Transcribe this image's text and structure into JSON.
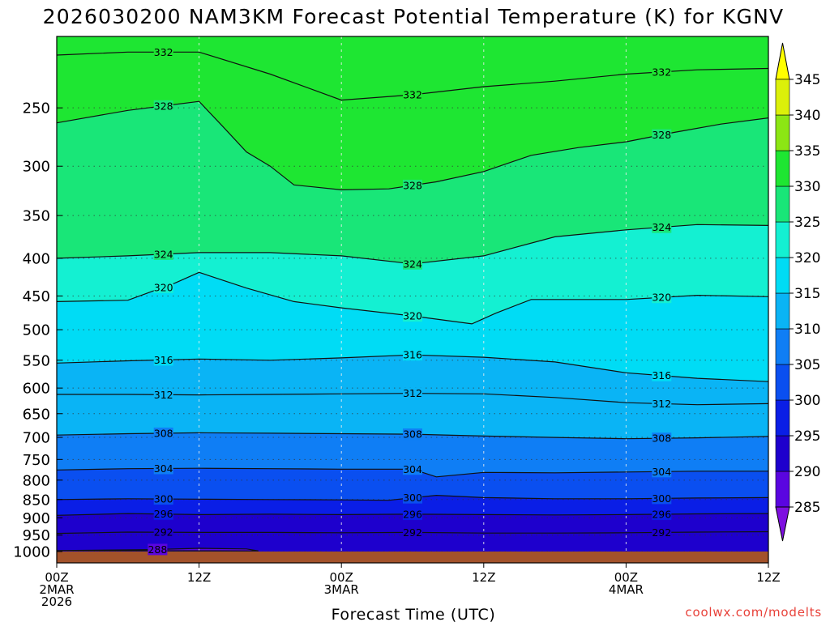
{
  "chart_data": {
    "type": "heatmap",
    "title": "2026030200 NAM3KM Forecast Potential Temperature (K) for KGNV",
    "xlabel": "Forecast Time (UTC)",
    "ylabel": "",
    "credit": "coolwx.com/modelts",
    "x_forecast_hours": [
      0,
      60
    ],
    "y_pressure_hPa": [
      1000,
      200
    ],
    "y_scale": "log",
    "y_ticks": [
      250,
      300,
      350,
      400,
      450,
      500,
      550,
      600,
      650,
      700,
      750,
      800,
      850,
      900,
      950,
      1000
    ],
    "x_ticks": [
      {
        "hour": 0,
        "lines": [
          "00Z",
          "2MAR",
          "2026"
        ]
      },
      {
        "hour": 12,
        "lines": [
          "12Z"
        ]
      },
      {
        "hour": 24,
        "lines": [
          "00Z",
          "3MAR"
        ]
      },
      {
        "hour": 36,
        "lines": [
          "12Z"
        ]
      },
      {
        "hour": 48,
        "lines": [
          "00Z",
          "4MAR"
        ]
      },
      {
        "hour": 60,
        "lines": [
          "12Z"
        ]
      }
    ],
    "grid": "dotted",
    "colorbar": {
      "placement": "right",
      "ticks": [
        285,
        290,
        295,
        300,
        305,
        310,
        315,
        320,
        325,
        330,
        335,
        340,
        345
      ],
      "colors": [
        "#7e0fe0",
        "#5a05e0",
        "#1e00cd",
        "#0a1ee6",
        "#0a4ff0",
        "#0f7ef5",
        "#0ab4f5",
        "#00dcf5",
        "#14f0d2",
        "#19e678",
        "#1ee632",
        "#8ce614",
        "#dcf00a",
        "#ffff00"
      ]
    },
    "contour_levels": [
      288,
      292,
      296,
      300,
      304,
      308,
      312,
      316,
      320,
      324,
      328,
      332
    ],
    "contours": [
      {
        "level": 288,
        "points": [
          [
            0,
            997
          ],
          [
            8,
            994
          ],
          [
            12,
            990
          ],
          [
            16,
            992
          ],
          [
            17,
            998
          ]
        ]
      },
      {
        "level": 292,
        "points": [
          [
            0,
            945
          ],
          [
            6,
            941
          ],
          [
            12,
            942
          ],
          [
            18,
            942
          ],
          [
            24,
            943
          ],
          [
            30,
            942
          ],
          [
            36,
            944
          ],
          [
            42,
            944
          ],
          [
            48,
            943
          ],
          [
            54,
            941
          ],
          [
            60,
            940
          ]
        ]
      },
      {
        "level": 296,
        "points": [
          [
            0,
            893
          ],
          [
            6,
            888
          ],
          [
            12,
            891
          ],
          [
            18,
            890
          ],
          [
            24,
            891
          ],
          [
            30,
            890
          ],
          [
            36,
            891
          ],
          [
            42,
            892
          ],
          [
            48,
            891
          ],
          [
            54,
            889
          ],
          [
            60,
            888
          ]
        ]
      },
      {
        "level": 300,
        "points": [
          [
            0,
            850
          ],
          [
            6,
            848
          ],
          [
            12,
            849
          ],
          [
            18,
            850
          ],
          [
            24,
            851
          ],
          [
            28,
            852
          ],
          [
            32,
            839
          ],
          [
            36,
            845
          ],
          [
            42,
            848
          ],
          [
            48,
            848
          ],
          [
            54,
            846
          ],
          [
            60,
            845
          ]
        ]
      },
      {
        "level": 304,
        "points": [
          [
            0,
            775
          ],
          [
            6,
            772
          ],
          [
            12,
            771
          ],
          [
            18,
            772
          ],
          [
            24,
            773
          ],
          [
            30,
            773
          ],
          [
            32,
            792
          ],
          [
            36,
            781
          ],
          [
            42,
            782
          ],
          [
            48,
            780
          ],
          [
            54,
            778
          ],
          [
            60,
            778
          ]
        ]
      },
      {
        "level": 308,
        "points": [
          [
            0,
            695
          ],
          [
            6,
            692
          ],
          [
            12,
            690
          ],
          [
            18,
            691
          ],
          [
            24,
            692
          ],
          [
            30,
            693
          ],
          [
            36,
            697
          ],
          [
            42,
            700
          ],
          [
            48,
            703
          ],
          [
            54,
            701
          ],
          [
            60,
            698
          ]
        ]
      },
      {
        "level": 312,
        "points": [
          [
            0,
            612
          ],
          [
            6,
            612
          ],
          [
            12,
            613
          ],
          [
            18,
            612
          ],
          [
            24,
            611
          ],
          [
            30,
            610
          ],
          [
            36,
            611
          ],
          [
            42,
            618
          ],
          [
            48,
            628
          ],
          [
            54,
            632
          ],
          [
            60,
            630
          ]
        ]
      },
      {
        "level": 316,
        "points": [
          [
            0,
            555
          ],
          [
            6,
            551
          ],
          [
            12,
            548
          ],
          [
            18,
            550
          ],
          [
            24,
            546
          ],
          [
            30,
            541
          ],
          [
            36,
            545
          ],
          [
            42,
            553
          ],
          [
            48,
            572
          ],
          [
            54,
            582
          ],
          [
            60,
            588
          ]
        ]
      },
      {
        "level": 320,
        "points": [
          [
            0,
            458
          ],
          [
            6,
            456
          ],
          [
            10,
            432
          ],
          [
            12,
            418
          ],
          [
            16,
            439
          ],
          [
            20,
            458
          ],
          [
            24,
            467
          ],
          [
            30,
            479
          ],
          [
            35,
            491
          ],
          [
            37,
            475
          ],
          [
            40,
            455
          ],
          [
            48,
            455
          ],
          [
            54,
            449
          ],
          [
            60,
            451
          ]
        ]
      },
      {
        "level": 324,
        "points": [
          [
            0,
            400
          ],
          [
            6,
            397
          ],
          [
            12,
            393
          ],
          [
            18,
            393
          ],
          [
            24,
            397
          ],
          [
            30,
            407
          ],
          [
            36,
            397
          ],
          [
            42,
            374
          ],
          [
            48,
            366
          ],
          [
            54,
            360
          ],
          [
            60,
            361
          ]
        ]
      },
      {
        "level": 328,
        "points": [
          [
            0,
            262
          ],
          [
            6,
            252
          ],
          [
            12,
            245
          ],
          [
            14,
            265
          ],
          [
            16,
            287
          ],
          [
            18,
            300
          ],
          [
            20,
            318
          ],
          [
            24,
            323
          ],
          [
            28,
            322
          ],
          [
            32,
            315
          ],
          [
            36,
            305
          ],
          [
            40,
            290
          ],
          [
            44,
            283
          ],
          [
            48,
            278
          ],
          [
            52,
            270
          ],
          [
            56,
            263
          ],
          [
            60,
            258
          ]
        ]
      },
      {
        "level": 332,
        "points": [
          [
            0,
            212
          ],
          [
            6,
            210
          ],
          [
            12,
            210
          ],
          [
            18,
            225
          ],
          [
            24,
            244
          ],
          [
            30,
            240
          ],
          [
            36,
            234
          ],
          [
            42,
            230
          ],
          [
            48,
            225
          ],
          [
            54,
            222
          ],
          [
            60,
            221
          ]
        ]
      }
    ],
    "surface_band_color": "#a3522a"
  }
}
